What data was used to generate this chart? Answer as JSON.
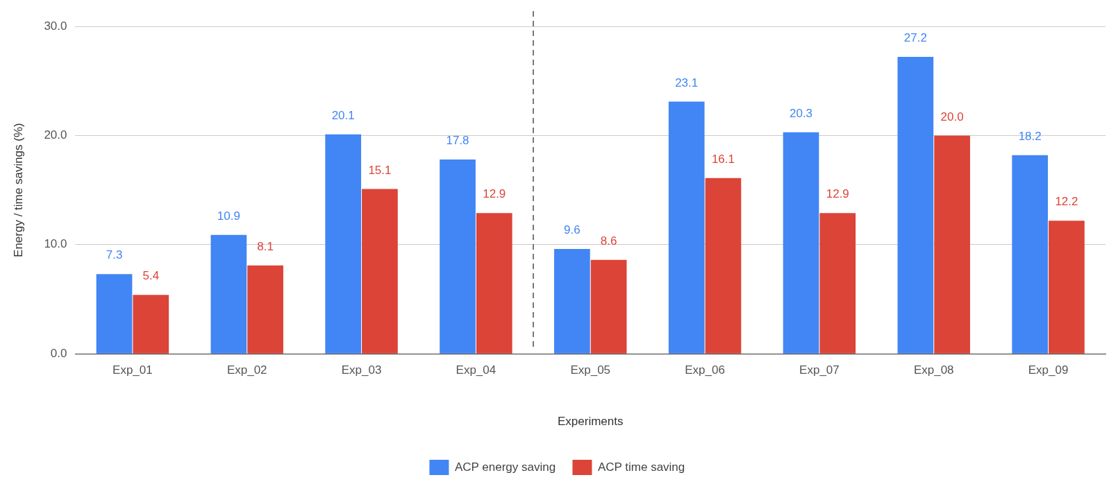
{
  "chart_data": {
    "type": "bar",
    "xlabel": "Experiments",
    "ylabel": "Energy / time savings (%)",
    "categories": [
      "Exp_01",
      "Exp_02",
      "Exp_03",
      "Exp_04",
      "Exp_05",
      "Exp_06",
      "Exp_07",
      "Exp_08",
      "Exp_09"
    ],
    "series": [
      {
        "name": "ACP energy saving",
        "color": "#4285f4",
        "values": [
          7.3,
          10.9,
          20.1,
          17.8,
          9.6,
          23.1,
          20.3,
          27.2,
          18.2
        ],
        "value_labels": [
          "7.3",
          "10.9",
          "20.1",
          "17.8",
          "9.6",
          "23.1",
          "20.3",
          "27.2",
          "18.2"
        ]
      },
      {
        "name": "ACP time saving",
        "color": "#db4437",
        "values": [
          5.4,
          8.1,
          15.1,
          12.9,
          8.6,
          16.1,
          12.9,
          20.0,
          12.2
        ],
        "value_labels": [
          "5.4",
          "8.1",
          "15.1",
          "12.9",
          "8.6",
          "16.1",
          "12.9",
          "20.0",
          "12.2"
        ]
      }
    ],
    "ylim": [
      0,
      30
    ],
    "yticks": [
      {
        "value": 0,
        "label": "0.0"
      },
      {
        "value": 10,
        "label": "10.0"
      },
      {
        "value": 20,
        "label": "20.0"
      },
      {
        "value": 30,
        "label": "30.0"
      }
    ],
    "grid": "y",
    "legend": "bottom"
  }
}
